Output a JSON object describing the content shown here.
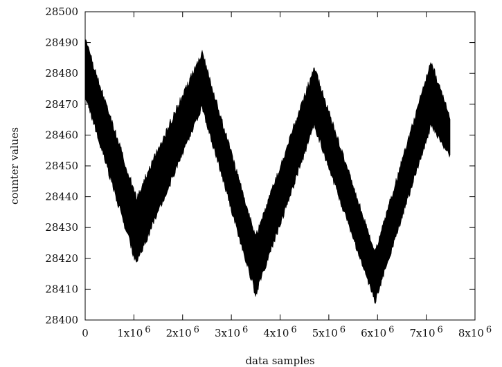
{
  "chart_data": {
    "type": "line",
    "title": "",
    "xlabel": "data samples",
    "ylabel": "counter values",
    "xlim": [
      0,
      8000000
    ],
    "ylim": [
      28400,
      28500
    ],
    "grid": false,
    "legend": "none",
    "colors": {
      "line": "#000000",
      "axis": "#000000",
      "background": "#ffffff"
    },
    "y_ticks": [
      {
        "value": 28400,
        "label": "28400"
      },
      {
        "value": 28410,
        "label": "28410"
      },
      {
        "value": 28420,
        "label": "28420"
      },
      {
        "value": 28430,
        "label": "28430"
      },
      {
        "value": 28440,
        "label": "28440"
      },
      {
        "value": 28450,
        "label": "28450"
      },
      {
        "value": 28460,
        "label": "28460"
      },
      {
        "value": 28470,
        "label": "28470"
      },
      {
        "value": 28480,
        "label": "28480"
      },
      {
        "value": 28490,
        "label": "28490"
      },
      {
        "value": 28500,
        "label": "28500"
      }
    ],
    "x_ticks": [
      {
        "value": 0,
        "mantissa": "0",
        "exponent": ""
      },
      {
        "value": 1000000,
        "mantissa": "1x10",
        "exponent": "6"
      },
      {
        "value": 2000000,
        "mantissa": "2x10",
        "exponent": "6"
      },
      {
        "value": 3000000,
        "mantissa": "3x10",
        "exponent": "6"
      },
      {
        "value": 4000000,
        "mantissa": "4x10",
        "exponent": "6"
      },
      {
        "value": 5000000,
        "mantissa": "5x10",
        "exponent": "6"
      },
      {
        "value": 6000000,
        "mantissa": "6x10",
        "exponent": "6"
      },
      {
        "value": 7000000,
        "mantissa": "7x10",
        "exponent": "6"
      },
      {
        "value": 8000000,
        "mantissa": "8x10",
        "exponent": "6"
      }
    ],
    "series": [
      {
        "center_points": [
          {
            "x": 0,
            "y": 28482
          },
          {
            "x": 1050000,
            "y": 28429
          },
          {
            "x": 2400000,
            "y": 28477
          },
          {
            "x": 3500000,
            "y": 28418
          },
          {
            "x": 4700000,
            "y": 28472
          },
          {
            "x": 5950000,
            "y": 28414
          },
          {
            "x": 7100000,
            "y": 28473
          },
          {
            "x": 7500000,
            "y": 28459
          }
        ],
        "upper_envelope": [
          {
            "x": 0,
            "y": 28492
          },
          {
            "x": 1050000,
            "y": 28441
          },
          {
            "x": 2400000,
            "y": 28488
          },
          {
            "x": 3500000,
            "y": 28428
          },
          {
            "x": 4700000,
            "y": 28483
          },
          {
            "x": 5950000,
            "y": 28423
          },
          {
            "x": 7100000,
            "y": 28485
          },
          {
            "x": 7500000,
            "y": 28466
          }
        ],
        "lower_envelope": [
          {
            "x": 0,
            "y": 28472
          },
          {
            "x": 1050000,
            "y": 28417
          },
          {
            "x": 2400000,
            "y": 28468
          },
          {
            "x": 3500000,
            "y": 28407
          },
          {
            "x": 4700000,
            "y": 28462
          },
          {
            "x": 5950000,
            "y": 28405
          },
          {
            "x": 7100000,
            "y": 28462
          },
          {
            "x": 7500000,
            "y": 28452
          }
        ]
      }
    ]
  }
}
